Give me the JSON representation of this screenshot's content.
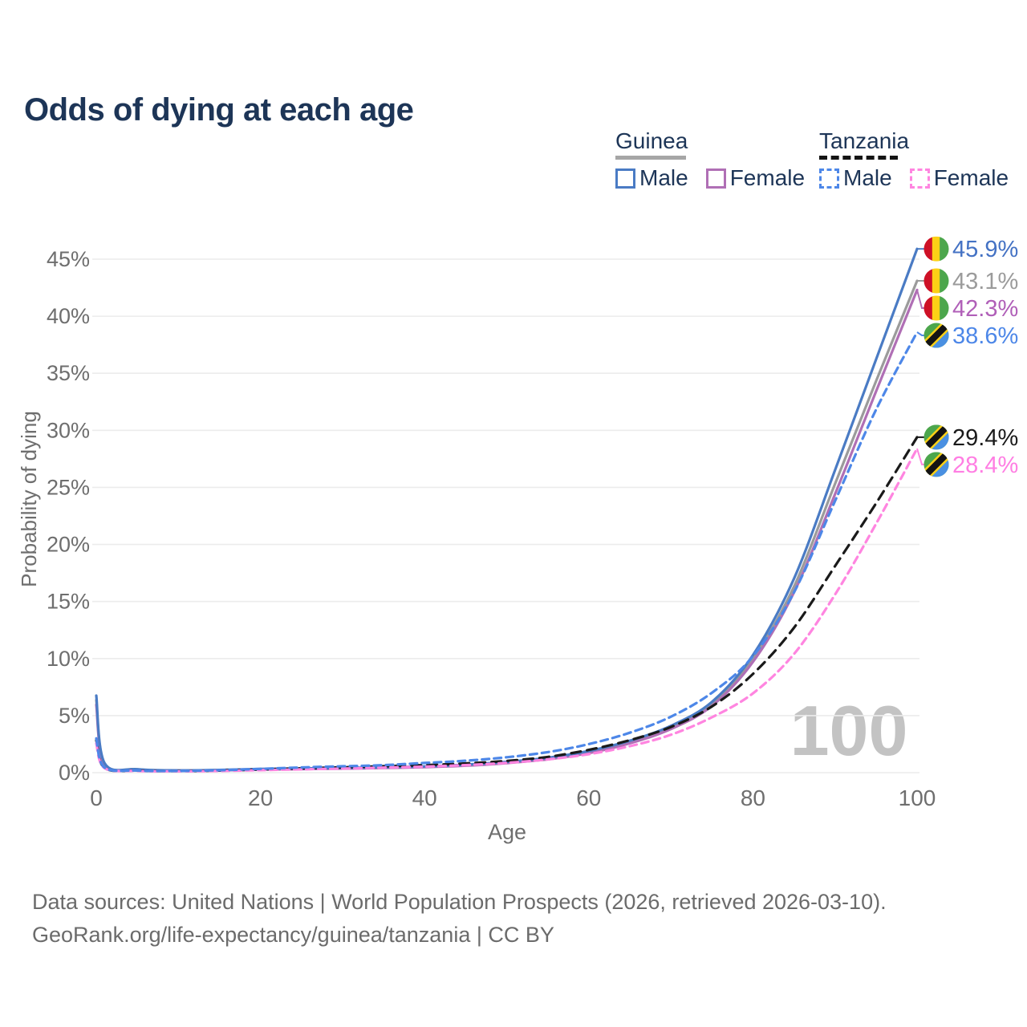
{
  "title": "Odds of dying at each age",
  "legend": {
    "groups": [
      {
        "name": "Guinea",
        "rule_style": "solid",
        "rule_color": "#a6a6a6",
        "items": [
          {
            "label": "Male",
            "color": "#4a7bc4",
            "style": "solid"
          },
          {
            "label": "Female",
            "color": "#b06fb5",
            "style": "solid"
          }
        ]
      },
      {
        "name": "Tanzania",
        "rule_style": "dashed",
        "rule_color": "#141414",
        "items": [
          {
            "label": "Male",
            "color": "#4d87e8",
            "style": "dashed"
          },
          {
            "label": "Female",
            "color": "#ff85e0",
            "style": "dashed"
          }
        ]
      }
    ]
  },
  "chart_data": {
    "type": "line",
    "title": "Odds of dying at each age",
    "xlabel": "Age",
    "ylabel": "Probability of dying",
    "xlim": [
      0,
      100
    ],
    "ylim": [
      0,
      47
    ],
    "x_ticks": [
      0,
      20,
      40,
      60,
      80,
      100
    ],
    "y_ticks": [
      0,
      5,
      10,
      15,
      20,
      25,
      30,
      35,
      40,
      45
    ],
    "y_tick_suffix": "%",
    "grid": "horizontal",
    "watermark": "100",
    "watermark_color": "#c3c3c3",
    "x": [
      0,
      1,
      5,
      10,
      15,
      20,
      25,
      30,
      35,
      40,
      45,
      50,
      55,
      60,
      65,
      70,
      75,
      80,
      85,
      90,
      95,
      100
    ],
    "series": [
      {
        "id": "guinea-both",
        "name": "Guinea (both sexes)",
        "color": "#9b9b9b",
        "dash": "solid",
        "end_label": "43.1%",
        "end_label_color": "#9b9b9b",
        "flag": "guinea",
        "values": [
          6.35,
          0.8,
          0.28,
          0.19,
          0.22,
          0.29,
          0.34,
          0.38,
          0.44,
          0.51,
          0.65,
          0.89,
          1.23,
          1.8,
          2.68,
          3.95,
          6.0,
          10.0,
          16.3,
          25.3,
          34.3,
          43.1
        ]
      },
      {
        "id": "guinea-female",
        "name": "Guinea Female",
        "color": "#b06fb5",
        "dash": "solid",
        "end_label": "42.3%",
        "end_label_color": "#b05fb8",
        "flag": "guinea",
        "values": [
          5.95,
          0.75,
          0.26,
          0.18,
          0.21,
          0.27,
          0.31,
          0.35,
          0.41,
          0.48,
          0.61,
          0.84,
          1.17,
          1.71,
          2.57,
          3.82,
          5.85,
          9.7,
          15.8,
          24.4,
          33.4,
          42.3
        ]
      },
      {
        "id": "guinea-male",
        "name": "Guinea Male",
        "color": "#4a7bc4",
        "dash": "solid",
        "end_label": "45.9%",
        "end_label_color": "#4472c4",
        "flag": "guinea",
        "values": [
          6.75,
          0.85,
          0.3,
          0.2,
          0.24,
          0.32,
          0.37,
          0.41,
          0.47,
          0.55,
          0.7,
          0.95,
          1.3,
          1.9,
          2.8,
          4.1,
          6.2,
          10.3,
          17.0,
          26.5,
          36.2,
          45.9
        ]
      },
      {
        "id": "tanzania-both",
        "name": "Tanzania (both sexes)",
        "color": "#1a1a1a",
        "dash": "long",
        "end_label": "29.4%",
        "end_label_color": "#1a1a1a",
        "flag": "tanzania",
        "values": [
          2.85,
          0.42,
          0.17,
          0.14,
          0.18,
          0.28,
          0.38,
          0.47,
          0.56,
          0.66,
          0.81,
          1.03,
          1.38,
          2.0,
          2.85,
          4.0,
          5.8,
          8.65,
          12.7,
          18.1,
          23.6,
          29.4
        ]
      },
      {
        "id": "tanzania-female",
        "name": "Tanzania Female",
        "color": "#ff85e0",
        "dash": "short",
        "end_label": "28.4%",
        "end_label_color": "#ff7ee3",
        "flag": "tanzania",
        "values": [
          2.55,
          0.4,
          0.15,
          0.12,
          0.15,
          0.22,
          0.29,
          0.36,
          0.44,
          0.53,
          0.66,
          0.86,
          1.16,
          1.62,
          2.32,
          3.32,
          4.85,
          6.95,
          10.4,
          15.6,
          21.8,
          28.4
        ]
      },
      {
        "id": "tanzania-male",
        "name": "Tanzania Male",
        "color": "#4d87e8",
        "dash": "short",
        "end_label": "38.6%",
        "end_label_color": "#4d87e8",
        "flag": "tanzania",
        "values": [
          3.0,
          0.45,
          0.18,
          0.15,
          0.21,
          0.33,
          0.46,
          0.56,
          0.66,
          0.85,
          1.05,
          1.35,
          1.8,
          2.5,
          3.5,
          4.9,
          7.0,
          10.2,
          15.8,
          23.8,
          31.8,
          38.6
        ]
      }
    ],
    "flag_colors": {
      "guinea": {
        "red": "#ce1126",
        "yellow": "#fcd116",
        "green": "#4ca64c"
      },
      "tanzania": {
        "green": "#4ca64c",
        "blue": "#4a90e2",
        "yellow": "#fcd116",
        "black": "#141414"
      }
    }
  },
  "footer": {
    "line1": "Data sources: United Nations | World Population Prospects (2026, retrieved 2026-03-10).",
    "line2": "GeoRank.org/life-expectancy/guinea/tanzania | CC BY"
  }
}
